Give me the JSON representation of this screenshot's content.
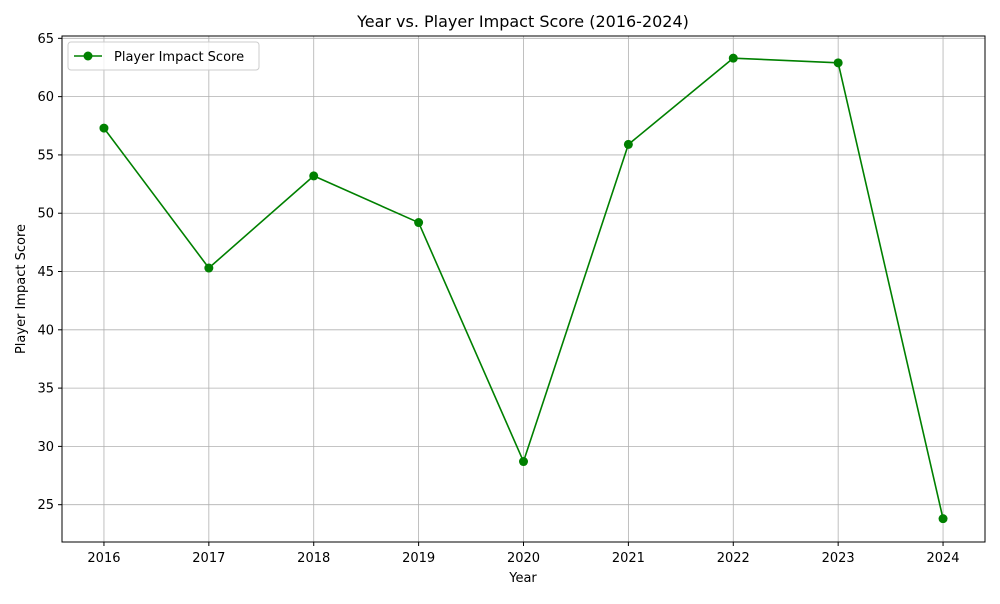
{
  "chart_data": {
    "type": "line",
    "title": "Year vs. Player Impact Score (2016-2024)",
    "xlabel": "Year",
    "ylabel": "Player Impact Score",
    "x": [
      2016,
      2017,
      2018,
      2019,
      2020,
      2021,
      2022,
      2023,
      2024
    ],
    "series": [
      {
        "name": "Player Impact Score",
        "values": [
          57.3,
          45.3,
          53.2,
          49.2,
          28.7,
          55.9,
          63.3,
          62.9,
          23.8
        ],
        "color": "#008000",
        "marker": "circle"
      }
    ],
    "xlim": [
      2015.6,
      2024.4
    ],
    "ylim": [
      21.8,
      65.2
    ],
    "x_ticks": [
      2016,
      2017,
      2018,
      2019,
      2020,
      2021,
      2022,
      2023,
      2024
    ],
    "y_ticks": [
      25,
      30,
      35,
      40,
      45,
      50,
      55,
      60,
      65
    ],
    "grid": true,
    "legend_position": "top-left"
  }
}
